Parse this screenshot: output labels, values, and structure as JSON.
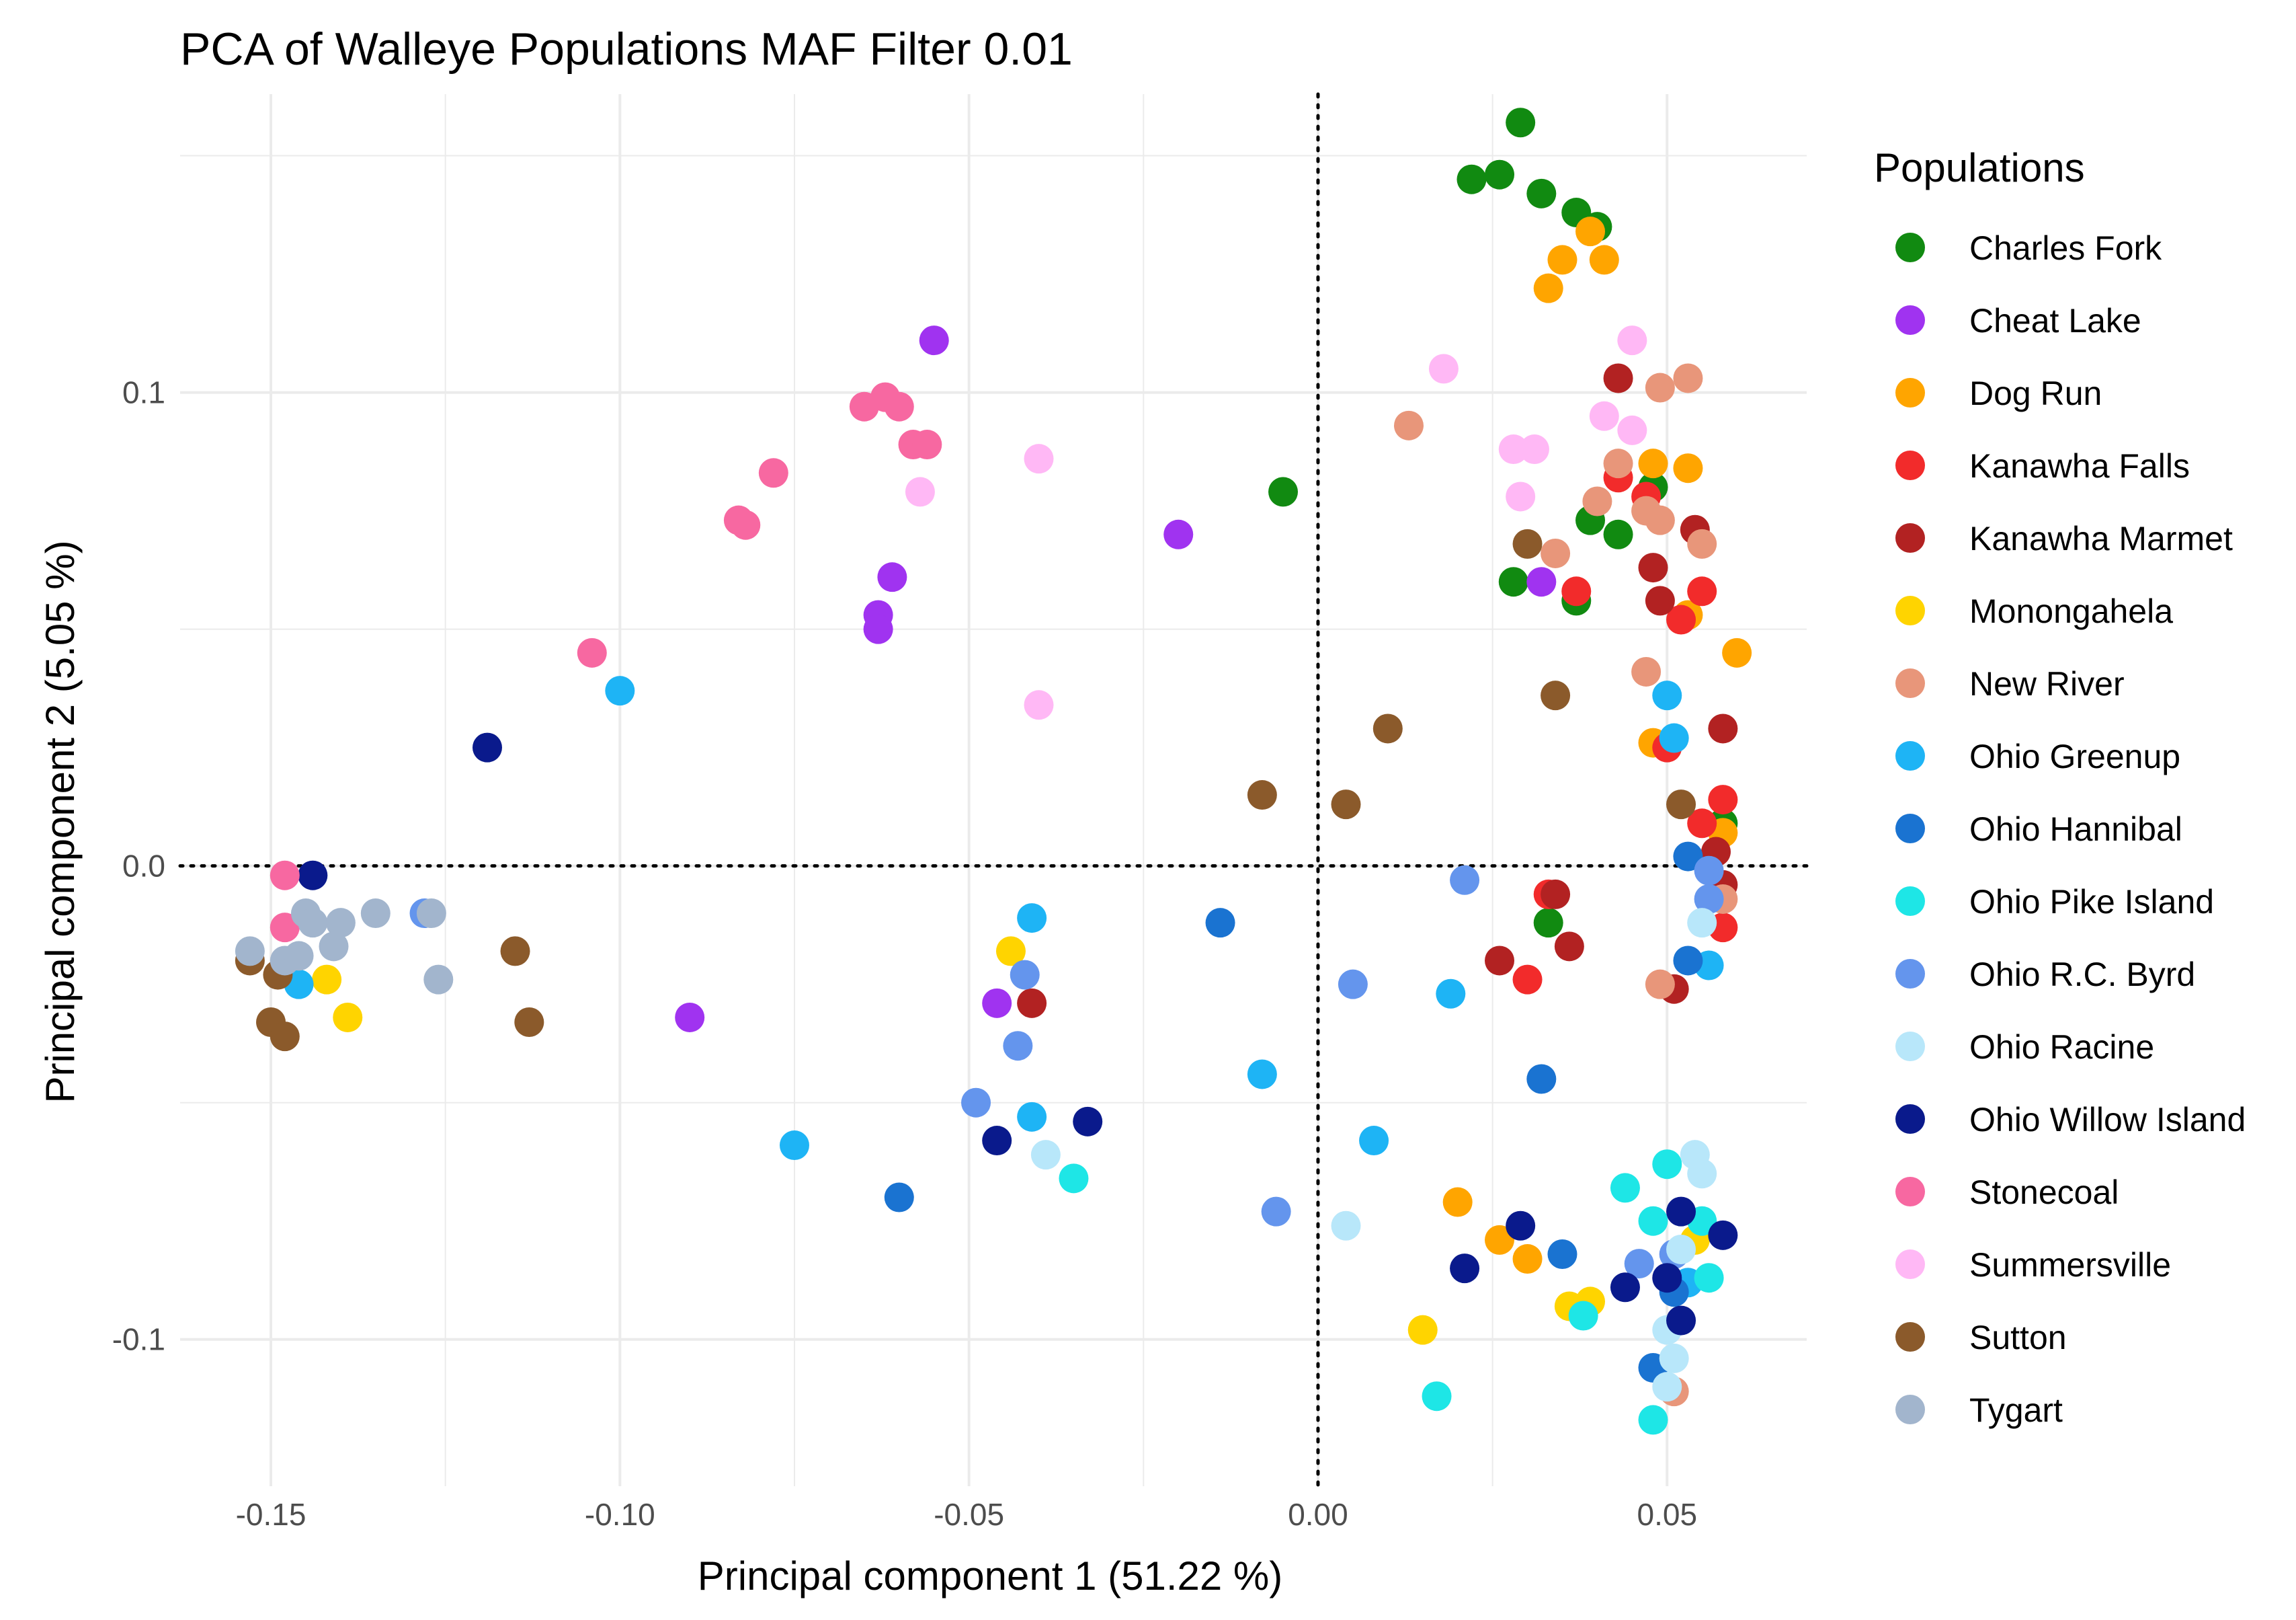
{
  "chart_data": {
    "type": "scatter",
    "title": "PCA of Walleye Populations MAF Filter 0.01",
    "xlabel": "Principal component 1 (51.22 %)",
    "ylabel": "Principal component 2 (5.05 %)",
    "xlim": [
      -0.163,
      0.07
    ],
    "ylim": [
      -0.131,
      0.163
    ],
    "x_ticks": [
      -0.15,
      -0.1,
      -0.05,
      0.0,
      0.05
    ],
    "x_tick_labels": [
      "-0.15",
      "-0.10",
      "-0.05",
      "0.00",
      "0.05"
    ],
    "y_ticks": [
      0.1,
      0.0,
      -0.1
    ],
    "y_tick_labels": [
      "0.1",
      "0.0",
      "-0.1"
    ],
    "grid": true,
    "reference_lines": {
      "x": 0,
      "y": 0,
      "style": "dotted"
    },
    "legend_title": "Populations",
    "legend_position": "right",
    "series": [
      {
        "name": "Charles Fork",
        "color": "#118a11",
        "points": [
          [
            0.029,
            0.157
          ],
          [
            0.022,
            0.145
          ],
          [
            0.026,
            0.146
          ],
          [
            0.032,
            0.142
          ],
          [
            0.037,
            0.138
          ],
          [
            0.04,
            0.135
          ],
          [
            -0.005,
            0.079
          ],
          [
            0.039,
            0.073
          ],
          [
            0.043,
            0.07
          ],
          [
            0.048,
            0.08
          ],
          [
            0.028,
            0.06
          ],
          [
            0.037,
            0.056
          ],
          [
            0.033,
            -0.012
          ],
          [
            0.058,
            0.009
          ]
        ]
      },
      {
        "name": "Cheat Lake",
        "color": "#a033f0",
        "points": [
          [
            -0.055,
            0.111
          ],
          [
            -0.061,
            0.061
          ],
          [
            -0.063,
            0.053
          ],
          [
            -0.063,
            0.05
          ],
          [
            -0.02,
            0.07
          ],
          [
            0.032,
            0.06
          ],
          [
            -0.09,
            -0.032
          ],
          [
            -0.046,
            -0.029
          ]
        ]
      },
      {
        "name": "Dog Run",
        "color": "#ffa500",
        "points": [
          [
            0.039,
            0.134
          ],
          [
            0.035,
            0.128
          ],
          [
            0.041,
            0.128
          ],
          [
            0.033,
            0.122
          ],
          [
            0.048,
            0.085
          ],
          [
            0.053,
            0.084
          ],
          [
            0.053,
            0.053
          ],
          [
            0.06,
            0.045
          ],
          [
            0.048,
            0.026
          ],
          [
            0.058,
            0.007
          ],
          [
            0.02,
            -0.071
          ],
          [
            0.026,
            -0.079
          ],
          [
            0.03,
            -0.083
          ]
        ]
      },
      {
        "name": "Kanawha Falls",
        "color": "#f22b2b",
        "points": [
          [
            0.043,
            0.082
          ],
          [
            0.047,
            0.078
          ],
          [
            0.037,
            0.058
          ],
          [
            0.055,
            0.058
          ],
          [
            0.052,
            0.052
          ],
          [
            0.05,
            0.025
          ],
          [
            0.058,
            0.014
          ],
          [
            0.055,
            0.009
          ],
          [
            0.033,
            -0.006
          ],
          [
            0.058,
            -0.013
          ],
          [
            0.03,
            -0.024
          ]
        ]
      },
      {
        "name": "Kanawha Marmet",
        "color": "#b22222",
        "points": [
          [
            0.043,
            0.103
          ],
          [
            0.054,
            0.071
          ],
          [
            0.048,
            0.063
          ],
          [
            0.049,
            0.056
          ],
          [
            0.058,
            0.029
          ],
          [
            0.057,
            0.003
          ],
          [
            0.034,
            -0.006
          ],
          [
            0.036,
            -0.017
          ],
          [
            0.026,
            -0.02
          ],
          [
            -0.041,
            -0.029
          ],
          [
            0.051,
            -0.026
          ],
          [
            0.058,
            -0.004
          ]
        ]
      },
      {
        "name": "Monongahela",
        "color": "#ffd400",
        "points": [
          [
            -0.044,
            -0.018
          ],
          [
            -0.142,
            -0.024
          ],
          [
            -0.139,
            -0.032
          ],
          [
            0.015,
            -0.098
          ],
          [
            0.036,
            -0.093
          ],
          [
            0.039,
            -0.092
          ],
          [
            0.054,
            -0.079
          ]
        ]
      },
      {
        "name": "New River",
        "color": "#e8967a",
        "points": [
          [
            0.053,
            0.103
          ],
          [
            0.049,
            0.101
          ],
          [
            0.013,
            0.093
          ],
          [
            0.043,
            0.085
          ],
          [
            0.04,
            0.077
          ],
          [
            0.047,
            0.075
          ],
          [
            0.049,
            0.073
          ],
          [
            0.055,
            0.068
          ],
          [
            0.034,
            0.066
          ],
          [
            0.047,
            0.041
          ],
          [
            0.058,
            -0.007
          ],
          [
            0.049,
            -0.025
          ],
          [
            0.051,
            -0.111
          ]
        ]
      },
      {
        "name": "Ohio Greenup",
        "color": "#1eb4f5",
        "points": [
          [
            -0.1,
            0.037
          ],
          [
            -0.041,
            -0.011
          ],
          [
            -0.075,
            -0.059
          ],
          [
            -0.041,
            -0.053
          ],
          [
            -0.008,
            -0.044
          ],
          [
            0.008,
            -0.058
          ],
          [
            0.019,
            -0.027
          ],
          [
            0.05,
            0.036
          ],
          [
            0.051,
            0.027
          ],
          [
            0.056,
            -0.021
          ],
          [
            0.053,
            -0.088
          ],
          [
            -0.146,
            -0.025
          ]
        ]
      },
      {
        "name": "Ohio Hannibal",
        "color": "#1a73d1",
        "points": [
          [
            -0.014,
            -0.012
          ],
          [
            -0.06,
            -0.07
          ],
          [
            0.032,
            -0.045
          ],
          [
            0.035,
            -0.082
          ],
          [
            0.053,
            -0.02
          ],
          [
            0.053,
            0.002
          ],
          [
            0.048,
            -0.106
          ],
          [
            0.051,
            -0.09
          ]
        ]
      },
      {
        "name": "Ohio Pike Island",
        "color": "#1ee6e6",
        "points": [
          [
            -0.035,
            -0.066
          ],
          [
            0.017,
            -0.112
          ],
          [
            0.038,
            -0.095
          ],
          [
            0.044,
            -0.068
          ],
          [
            0.05,
            -0.063
          ],
          [
            0.048,
            -0.075
          ],
          [
            0.055,
            -0.075
          ],
          [
            0.056,
            -0.087
          ],
          [
            0.048,
            -0.117
          ]
        ]
      },
      {
        "name": "Ohio R.C. Byrd",
        "color": "#6495ed",
        "points": [
          [
            -0.128,
            -0.01
          ],
          [
            -0.042,
            -0.023
          ],
          [
            -0.043,
            -0.038
          ],
          [
            -0.049,
            -0.05
          ],
          [
            -0.006,
            -0.073
          ],
          [
            0.005,
            -0.025
          ],
          [
            0.021,
            -0.003
          ],
          [
            0.056,
            -0.001
          ],
          [
            0.056,
            -0.007
          ],
          [
            0.046,
            -0.084
          ],
          [
            0.051,
            -0.082
          ]
        ]
      },
      {
        "name": "Ohio Racine",
        "color": "#b8e7fa",
        "points": [
          [
            -0.039,
            -0.061
          ],
          [
            0.004,
            -0.076
          ],
          [
            0.055,
            -0.065
          ],
          [
            0.054,
            -0.061
          ],
          [
            0.052,
            -0.081
          ],
          [
            0.05,
            -0.098
          ],
          [
            0.051,
            -0.104
          ],
          [
            0.05,
            -0.11
          ],
          [
            0.055,
            -0.012
          ]
        ]
      },
      {
        "name": "Ohio Willow Island",
        "color": "#0a1a8c",
        "points": [
          [
            -0.119,
            0.025
          ],
          [
            -0.144,
            -0.002
          ],
          [
            -0.046,
            -0.058
          ],
          [
            -0.033,
            -0.054
          ],
          [
            0.029,
            -0.076
          ],
          [
            0.021,
            -0.085
          ],
          [
            0.044,
            -0.089
          ],
          [
            0.052,
            -0.073
          ],
          [
            0.058,
            -0.078
          ],
          [
            0.052,
            -0.096
          ],
          [
            0.05,
            -0.087
          ]
        ]
      },
      {
        "name": "Stonecoal",
        "color": "#f768a1",
        "points": [
          [
            -0.065,
            0.097
          ],
          [
            -0.062,
            0.099
          ],
          [
            -0.06,
            0.097
          ],
          [
            -0.058,
            0.089
          ],
          [
            -0.056,
            0.089
          ],
          [
            -0.078,
            0.083
          ],
          [
            -0.083,
            0.073
          ],
          [
            -0.082,
            0.072
          ],
          [
            -0.104,
            0.045
          ],
          [
            -0.148,
            -0.002
          ],
          [
            -0.148,
            -0.013
          ]
        ]
      },
      {
        "name": "Summersville",
        "color": "#ffb8f5",
        "points": [
          [
            0.045,
            0.111
          ],
          [
            0.018,
            0.105
          ],
          [
            0.041,
            0.095
          ],
          [
            0.045,
            0.092
          ],
          [
            0.028,
            0.088
          ],
          [
            0.031,
            0.088
          ],
          [
            0.029,
            0.078
          ],
          [
            -0.04,
            0.086
          ],
          [
            -0.057,
            0.079
          ],
          [
            -0.04,
            0.034
          ]
        ]
      },
      {
        "name": "Sutton",
        "color": "#8b5a2b",
        "points": [
          [
            0.03,
            0.068
          ],
          [
            0.034,
            0.036
          ],
          [
            0.01,
            0.029
          ],
          [
            -0.008,
            0.015
          ],
          [
            0.004,
            0.013
          ],
          [
            0.052,
            0.013
          ],
          [
            -0.115,
            -0.018
          ],
          [
            -0.113,
            -0.033
          ],
          [
            -0.15,
            -0.033
          ],
          [
            -0.148,
            -0.036
          ],
          [
            -0.153,
            -0.02
          ],
          [
            -0.149,
            -0.023
          ]
        ]
      },
      {
        "name": "Tygart",
        "color": "#a2b5cd",
        "points": [
          [
            -0.145,
            -0.01
          ],
          [
            -0.144,
            -0.012
          ],
          [
            -0.14,
            -0.012
          ],
          [
            -0.135,
            -0.01
          ],
          [
            -0.127,
            -0.01
          ],
          [
            -0.126,
            -0.024
          ],
          [
            -0.153,
            -0.018
          ],
          [
            -0.141,
            -0.017
          ],
          [
            -0.148,
            -0.02
          ],
          [
            -0.146,
            -0.019
          ]
        ]
      }
    ]
  }
}
